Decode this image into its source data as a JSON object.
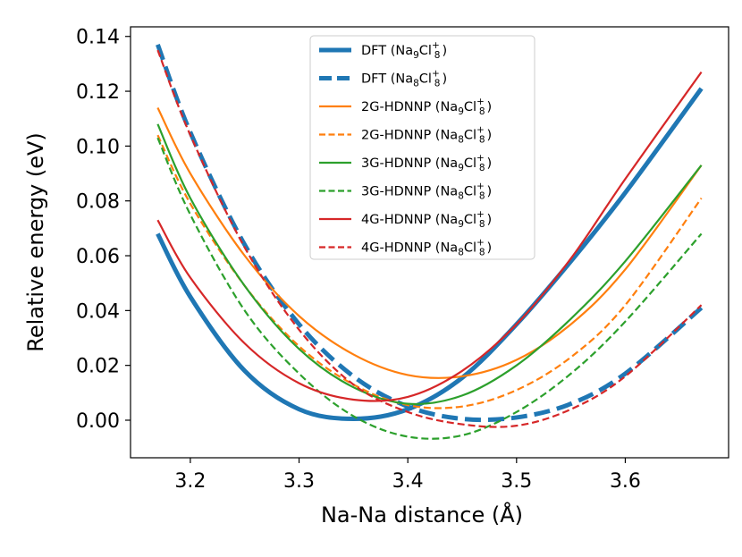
{
  "chart_data": {
    "type": "line",
    "title": "",
    "xlabel": "Na-Na distance (Å)",
    "ylabel": "Relative energy (eV)",
    "xlim": [
      3.145,
      3.695
    ],
    "ylim": [
      -0.0137,
      0.1435
    ],
    "xticks": [
      3.2,
      3.3,
      3.4,
      3.5,
      3.6
    ],
    "yticks": [
      0.0,
      0.02,
      0.04,
      0.06,
      0.08,
      0.1,
      0.12,
      0.14
    ],
    "xtick_labels": [
      "3.2",
      "3.3",
      "3.4",
      "3.5",
      "3.6"
    ],
    "ytick_labels": [
      "0.00",
      "0.02",
      "0.04",
      "0.06",
      "0.08",
      "0.10",
      "0.12",
      "0.14"
    ],
    "grid": false,
    "legend_position": "top-center",
    "series": [
      {
        "name": "DFT (Na9Cl8+)",
        "legend": {
          "main": "DFT (Na",
          "sub1": "9",
          "mid": "Cl",
          "sub2": "8",
          "sup": "+",
          "end": ")"
        },
        "color": "#1f77b4",
        "style": "solid",
        "width": "thick",
        "x": [
          3.17,
          3.2,
          3.25,
          3.3,
          3.35,
          3.4,
          3.45,
          3.5,
          3.55,
          3.6,
          3.67
        ],
        "y": [
          0.068,
          0.045,
          0.018,
          0.004,
          0.0005,
          0.004,
          0.0155,
          0.035,
          0.058,
          0.083,
          0.121
        ]
      },
      {
        "name": "DFT (Na8Cl8+)",
        "legend": {
          "main": "DFT (Na",
          "sub1": "8",
          "mid": "Cl",
          "sub2": "8",
          "sup": "+",
          "end": ")"
        },
        "color": "#1f77b4",
        "style": "dashed",
        "width": "thick",
        "x": [
          3.17,
          3.2,
          3.25,
          3.3,
          3.35,
          3.4,
          3.45,
          3.5,
          3.55,
          3.6,
          3.67
        ],
        "y": [
          0.137,
          0.105,
          0.064,
          0.035,
          0.016,
          0.005,
          0.0005,
          0.001,
          0.006,
          0.017,
          0.041
        ]
      },
      {
        "name": "2G-HDNNP (Na9Cl8+)",
        "legend": {
          "main": "2G-HDNNP (Na",
          "sub1": "9",
          "mid": "Cl",
          "sub2": "8",
          "sup": "+",
          "end": ")"
        },
        "color": "#ff7f0e",
        "style": "solid",
        "width": "thin",
        "x": [
          3.17,
          3.2,
          3.25,
          3.3,
          3.35,
          3.4,
          3.45,
          3.5,
          3.55,
          3.6,
          3.67
        ],
        "y": [
          0.114,
          0.09,
          0.06,
          0.038,
          0.024,
          0.0165,
          0.016,
          0.022,
          0.035,
          0.055,
          0.093
        ]
      },
      {
        "name": "2G-HDNNP (Na8Cl8+)",
        "legend": {
          "main": "2G-HDNNP (Na",
          "sub1": "8",
          "mid": "Cl",
          "sub2": "8",
          "sup": "+",
          "end": ")"
        },
        "color": "#ff7f0e",
        "style": "dashed",
        "width": "thin",
        "x": [
          3.17,
          3.2,
          3.25,
          3.3,
          3.35,
          3.4,
          3.45,
          3.5,
          3.55,
          3.6,
          3.67
        ],
        "y": [
          0.104,
          0.079,
          0.049,
          0.027,
          0.013,
          0.0055,
          0.005,
          0.011,
          0.023,
          0.042,
          0.081
        ]
      },
      {
        "name": "3G-HDNNP (Na9Cl8+)",
        "legend": {
          "main": "3G-HDNNP (Na",
          "sub1": "9",
          "mid": "Cl",
          "sub2": "8",
          "sup": "+",
          "end": ")"
        },
        "color": "#2ca02c",
        "style": "solid",
        "width": "thin",
        "x": [
          3.17,
          3.2,
          3.25,
          3.3,
          3.35,
          3.4,
          3.45,
          3.5,
          3.55,
          3.6,
          3.67
        ],
        "y": [
          0.108,
          0.081,
          0.049,
          0.026,
          0.012,
          0.006,
          0.009,
          0.02,
          0.037,
          0.058,
          0.093
        ]
      },
      {
        "name": "3G-HDNNP (Na8Cl8+)",
        "legend": {
          "main": "3G-HDNNP (Na",
          "sub1": "8",
          "mid": "Cl",
          "sub2": "8",
          "sup": "+",
          "end": ")"
        },
        "color": "#2ca02c",
        "style": "dashed",
        "width": "thin",
        "x": [
          3.17,
          3.2,
          3.25,
          3.3,
          3.35,
          3.4,
          3.45,
          3.5,
          3.55,
          3.6,
          3.67
        ],
        "y": [
          0.103,
          0.075,
          0.04,
          0.017,
          0.0015,
          -0.006,
          -0.0055,
          0.003,
          0.017,
          0.036,
          0.068
        ]
      },
      {
        "name": "4G-HDNNP (Na9Cl8+)",
        "legend": {
          "main": "4G-HDNNP (Na",
          "sub1": "9",
          "mid": "Cl",
          "sub2": "8",
          "sup": "+",
          "end": ")"
        },
        "color": "#d62728",
        "style": "solid",
        "width": "thin",
        "x": [
          3.17,
          3.2,
          3.25,
          3.3,
          3.35,
          3.4,
          3.45,
          3.5,
          3.55,
          3.6,
          3.67
        ],
        "y": [
          0.073,
          0.052,
          0.028,
          0.0135,
          0.0075,
          0.0085,
          0.018,
          0.035,
          0.059,
          0.088,
          0.127
        ]
      },
      {
        "name": "4G-HDNNP (Na8Cl8+)",
        "legend": {
          "main": "4G-HDNNP (Na",
          "sub1": "8",
          "mid": "Cl",
          "sub2": "8",
          "sup": "+",
          "end": ")"
        },
        "color": "#d62728",
        "style": "dashed",
        "width": "thin",
        "x": [
          3.17,
          3.2,
          3.25,
          3.3,
          3.35,
          3.4,
          3.45,
          3.5,
          3.55,
          3.6,
          3.67
        ],
        "y": [
          0.135,
          0.104,
          0.063,
          0.033,
          0.013,
          0.003,
          -0.0015,
          -0.002,
          0.004,
          0.016,
          0.042
        ]
      }
    ]
  }
}
